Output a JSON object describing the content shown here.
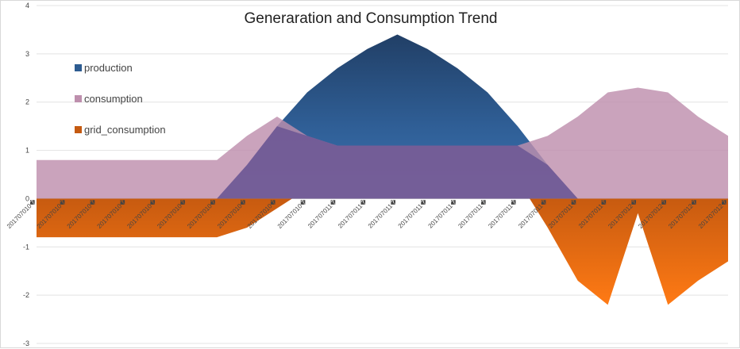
{
  "chart_data": {
    "type": "area",
    "title": "Generaration and Consumption Trend",
    "xlabel": "",
    "ylabel": "",
    "ylim": [
      -3,
      4
    ],
    "yticks": [
      "-3",
      "-2",
      "-1",
      "0",
      "1",
      "2",
      "3",
      "4"
    ],
    "grid": true,
    "legend_position": "left",
    "categories": [
      "201707010�",
      "201707010�",
      "201707010�",
      "201707010�",
      "201707010�",
      "201707010�",
      "201707010�",
      "201707010�",
      "201707010�",
      "201707010�",
      "201707011�",
      "201707011�",
      "201707011�",
      "201707011�",
      "201707011�",
      "201707011�",
      "201707011�",
      "201707011�",
      "201707011�",
      "201707011�",
      "201707012�",
      "201707012�",
      "201707012�",
      "201707012�"
    ],
    "series": [
      {
        "name": "production",
        "color": "#2e5c91",
        "values": [
          0,
          0,
          0,
          0,
          0,
          0,
          0,
          0.7,
          1.5,
          2.2,
          2.7,
          3.1,
          3.4,
          3.1,
          2.7,
          2.2,
          1.5,
          0.7,
          0,
          0,
          0,
          0,
          0,
          0
        ]
      },
      {
        "name": "consumption",
        "color": "#be8fad",
        "values": [
          0.8,
          0.8,
          0.8,
          0.8,
          0.8,
          0.8,
          0.8,
          1.3,
          1.7,
          1.3,
          1.1,
          1.1,
          1.1,
          1.1,
          1.1,
          1.1,
          1.1,
          1.3,
          1.7,
          2.2,
          2.3,
          2.2,
          1.7,
          1.3
        ]
      },
      {
        "name": "grid_consumption",
        "color": "#c55a11",
        "values": [
          -0.8,
          -0.8,
          -0.8,
          -0.8,
          -0.8,
          -0.8,
          -0.8,
          -0.6,
          -0.2,
          0.2,
          1.6,
          2.0,
          2.3,
          2.0,
          1.6,
          1.1,
          0.4,
          -0.6,
          -1.7,
          -2.2,
          -0.3,
          -2.2,
          -1.7,
          -1.3
        ]
      }
    ]
  }
}
